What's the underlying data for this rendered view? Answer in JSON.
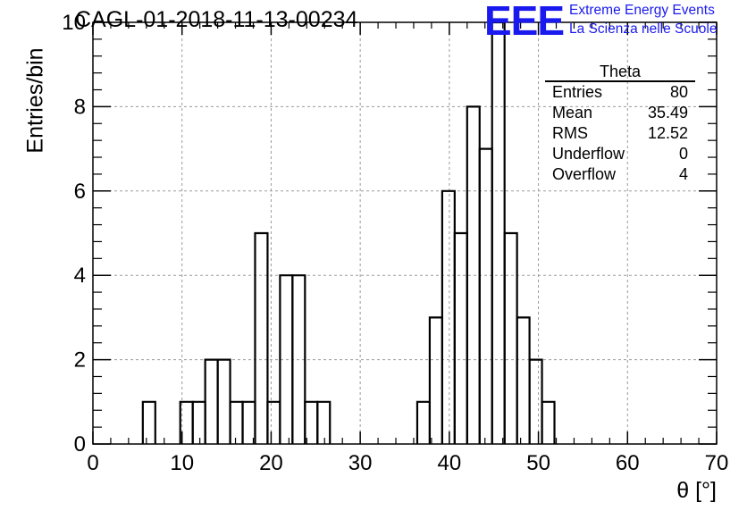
{
  "header": {
    "title": "CAGL-01-2018-11-13-00234",
    "logo_mark": "EEE",
    "logo_line1": "Extreme Energy Events",
    "logo_line2": "La Scienza nelle Scuole",
    "logo_color": "#1a1aee"
  },
  "stats": {
    "title": "Theta",
    "rows": [
      {
        "label": "Entries",
        "value": "80"
      },
      {
        "label": "Mean",
        "value": "35.49"
      },
      {
        "label": "RMS",
        "value": "12.52"
      },
      {
        "label": "Underflow",
        "value": "0"
      },
      {
        "label": "Overflow",
        "value": "4"
      }
    ]
  },
  "chart_data": {
    "type": "bar",
    "histogram": true,
    "xlabel": "θ [°]",
    "ylabel": "Entries/bin",
    "xlim": [
      0,
      70
    ],
    "ylim": [
      0,
      10
    ],
    "bin_width": 1.4,
    "x_ticks": [
      0,
      10,
      20,
      30,
      40,
      50,
      60,
      70
    ],
    "y_ticks": [
      0,
      2,
      4,
      6,
      8,
      10
    ],
    "grid": true,
    "bins": [
      {
        "x": 5.6,
        "value": 1
      },
      {
        "x": 9.8,
        "value": 1
      },
      {
        "x": 11.2,
        "value": 1
      },
      {
        "x": 12.6,
        "value": 2
      },
      {
        "x": 14.0,
        "value": 2
      },
      {
        "x": 15.4,
        "value": 1
      },
      {
        "x": 16.8,
        "value": 1
      },
      {
        "x": 18.2,
        "value": 5
      },
      {
        "x": 19.6,
        "value": 1
      },
      {
        "x": 21.0,
        "value": 4
      },
      {
        "x": 22.4,
        "value": 4
      },
      {
        "x": 23.8,
        "value": 1
      },
      {
        "x": 25.2,
        "value": 1
      },
      {
        "x": 36.4,
        "value": 1
      },
      {
        "x": 37.8,
        "value": 3
      },
      {
        "x": 39.2,
        "value": 6
      },
      {
        "x": 40.6,
        "value": 5
      },
      {
        "x": 42.0,
        "value": 8
      },
      {
        "x": 43.4,
        "value": 7
      },
      {
        "x": 44.8,
        "value": 10
      },
      {
        "x": 46.2,
        "value": 5
      },
      {
        "x": 47.6,
        "value": 3
      },
      {
        "x": 49.0,
        "value": 2
      },
      {
        "x": 50.4,
        "value": 1
      }
    ]
  }
}
